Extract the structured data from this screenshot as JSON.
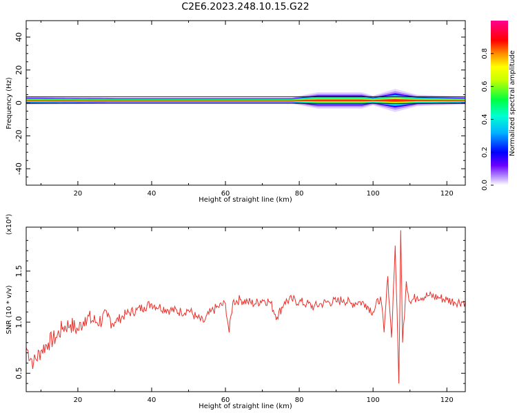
{
  "chart_data": [
    {
      "type": "heatmap",
      "title": "C2E6.2023.248.10.15.G22",
      "xlabel": "Height of straight line (km)",
      "ylabel": "Frequency (Hz)",
      "xlim": [
        6,
        125
      ],
      "ylim": [
        -50,
        50
      ],
      "x_ticks": [
        "20",
        "40",
        "60",
        "80",
        "100",
        "120"
      ],
      "y_ticks": [
        "40",
        "20",
        "0",
        "-20",
        "-40"
      ],
      "colorbar": {
        "label": "Normalized spectral amplitude",
        "range": [
          0.0,
          1.0
        ],
        "ticks": [
          "0.0",
          "0.2",
          "0.4",
          "0.6",
          "0.8"
        ]
      },
      "band": {
        "center_freq": 1.5,
        "width_profile": [
          {
            "x": 6,
            "halfwidth": 2.5
          },
          {
            "x": 30,
            "halfwidth": 2.0
          },
          {
            "x": 78,
            "halfwidth": 2.0
          },
          {
            "x": 85,
            "halfwidth": 5.0
          },
          {
            "x": 97,
            "halfwidth": 5.0
          },
          {
            "x": 100,
            "halfwidth": 3.0
          },
          {
            "x": 106,
            "halfwidth": 7.0
          },
          {
            "x": 112,
            "halfwidth": 3.5
          },
          {
            "x": 125,
            "halfwidth": 2.5
          }
        ]
      }
    },
    {
      "type": "line",
      "xlabel": "Height of straight line (km)",
      "ylabel": "SNR (10 * v/v)",
      "scale_note": "(x10⁴)",
      "xlim": [
        6,
        125
      ],
      "ylim": [
        0.32,
        1.93
      ],
      "x_ticks": [
        "20",
        "40",
        "60",
        "80",
        "100",
        "120"
      ],
      "y_ticks": [
        "0.5",
        "1.0",
        "1.5"
      ],
      "series": [
        {
          "color": "#e8302a",
          "x": [
            6,
            8,
            10,
            12,
            14,
            16,
            18,
            20,
            22,
            25,
            28,
            30,
            33,
            36,
            38,
            40,
            42,
            45,
            48,
            50,
            52,
            54,
            56,
            58,
            60,
            61,
            62,
            64,
            66,
            68,
            70,
            72,
            74,
            76,
            78,
            80,
            82,
            84,
            86,
            88,
            90,
            92,
            94,
            96,
            98,
            100,
            102,
            103,
            104,
            105,
            106,
            107,
            107.5,
            108,
            109,
            110,
            112,
            115,
            118,
            120,
            122,
            125
          ],
          "y": [
            0.75,
            0.6,
            0.72,
            0.8,
            0.85,
            0.95,
            0.98,
            0.92,
            1.05,
            1.0,
            1.05,
            1.0,
            1.08,
            1.12,
            1.15,
            1.18,
            1.15,
            1.12,
            1.1,
            1.12,
            1.05,
            1.0,
            1.1,
            1.15,
            1.18,
            0.9,
            1.2,
            1.22,
            1.2,
            1.18,
            1.22,
            1.2,
            1.05,
            1.2,
            1.22,
            1.2,
            1.18,
            1.15,
            1.18,
            1.2,
            1.2,
            1.22,
            1.18,
            1.2,
            1.18,
            1.1,
            1.25,
            0.9,
            1.45,
            0.85,
            1.75,
            0.4,
            1.9,
            0.8,
            1.4,
            1.2,
            1.25,
            1.26,
            1.24,
            1.22,
            1.2,
            1.2
          ]
        }
      ]
    }
  ]
}
